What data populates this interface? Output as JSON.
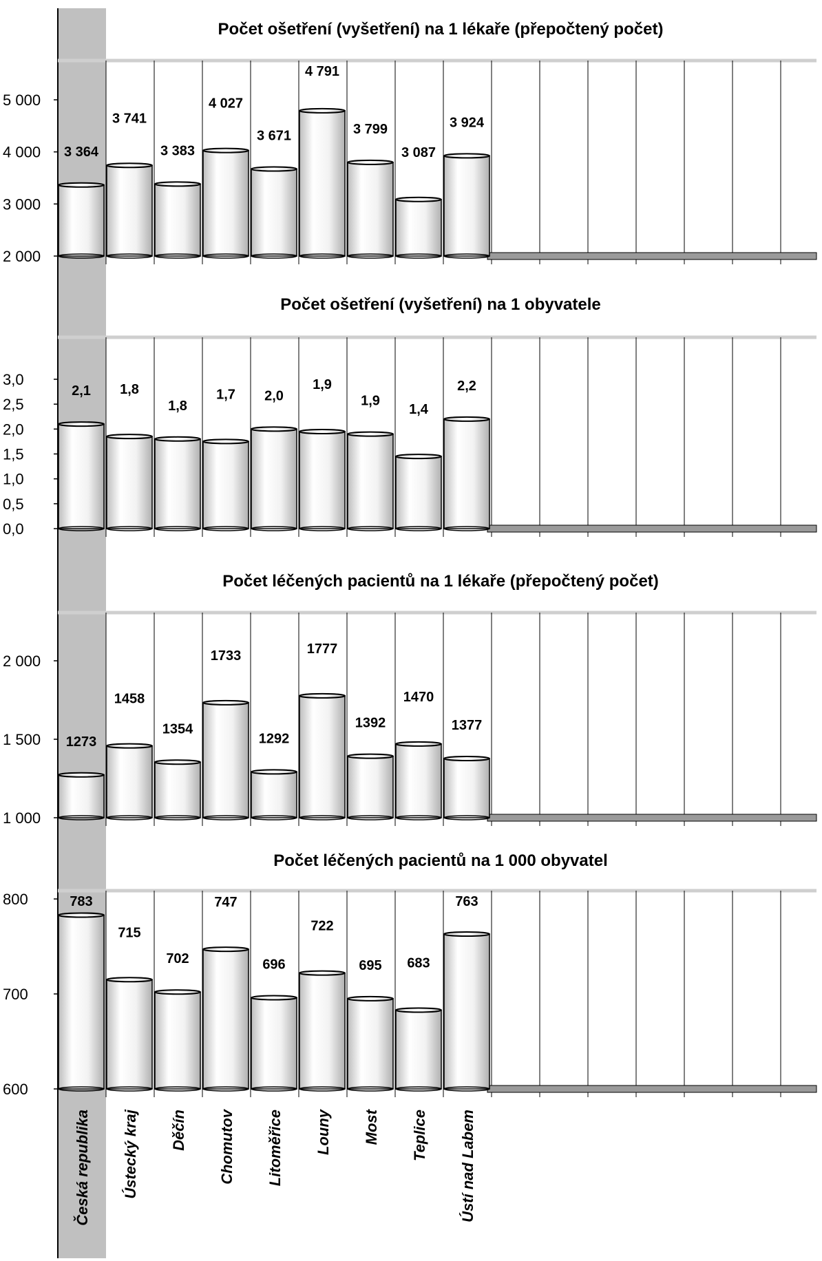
{
  "colors": {
    "highlight_band": "#c0c0c0",
    "bar_fill_light": "#ffffff",
    "bar_fill_dark": "#bdbdbd",
    "bar_stroke": "#000000",
    "floor": "#9a9a9a",
    "grid": "#000000"
  },
  "categories": [
    "Česká republika",
    "Ústecký kraj",
    "Děčín",
    "Chomutov",
    "Litoměřice",
    "Louny",
    "Most",
    "Teplice",
    "Ústí nad Labem"
  ],
  "chart_data": [
    {
      "type": "bar",
      "title": "Počet ošetření (vyšetření) na 1 lékaře (přepočtený počet)",
      "categories": [
        "Česká republika",
        "Ústecký kraj",
        "Děčín",
        "Chomutov",
        "Litoměřice",
        "Louny",
        "Most",
        "Teplice",
        "Ústí nad Labem"
      ],
      "values": [
        3364,
        3741,
        3383,
        4027,
        3671,
        4791,
        3799,
        3087,
        3924
      ],
      "value_labels": [
        "3 364",
        "3 741",
        "3 383",
        "4 027",
        "3 671",
        "4 791",
        "3 799",
        "3 087",
        "3 924"
      ],
      "ylim": [
        2000,
        5000
      ],
      "yticks": [
        2000,
        3000,
        4000,
        5000
      ],
      "ytick_labels": [
        "2 000",
        "3 000",
        "4 000",
        "5 000"
      ],
      "highlight": "Česká republika",
      "grid": true
    },
    {
      "type": "bar",
      "title": "Počet ošetření (vyšetření) na 1 obyvatele",
      "categories": [
        "Česká republika",
        "Ústecký kraj",
        "Děčín",
        "Chomutov",
        "Litoměřice",
        "Louny",
        "Most",
        "Teplice",
        "Ústí nad Labem"
      ],
      "values": [
        2.1,
        1.85,
        1.8,
        1.75,
        2.0,
        1.95,
        1.9,
        1.45,
        2.2
      ],
      "value_labels": [
        "2,1",
        "1,8",
        "1,8",
        "1,7",
        "2,0",
        "1,9",
        "1,9",
        "1,4",
        "2,2"
      ],
      "ylim": [
        0,
        3.0
      ],
      "yticks": [
        0,
        0.5,
        1.0,
        1.5,
        2.0,
        2.5,
        3.0
      ],
      "ytick_labels": [
        "0,0",
        "0,5",
        "1,0",
        "1,5",
        "2,0",
        "2,5",
        "3,0"
      ],
      "highlight": "Česká republika",
      "grid": true
    },
    {
      "type": "bar",
      "title": "Počet léčených pacientů na 1 lékaře (přepočtený počet)",
      "categories": [
        "Česká republika",
        "Ústecký kraj",
        "Děčín",
        "Chomutov",
        "Litoměřice",
        "Louny",
        "Most",
        "Teplice",
        "Ústí nad Labem"
      ],
      "values": [
        1273,
        1458,
        1354,
        1733,
        1292,
        1777,
        1392,
        1470,
        1377
      ],
      "value_labels": [
        "1273",
        "1458",
        "1354",
        "1733",
        "1292",
        "1777",
        "1392",
        "1470",
        "1377"
      ],
      "ylim": [
        1000,
        2000
      ],
      "yticks": [
        1000,
        1500,
        2000
      ],
      "ytick_labels": [
        "1 000",
        "1 500",
        "2 000"
      ],
      "highlight": "Česká republika",
      "grid": true
    },
    {
      "type": "bar",
      "title": "Počet léčených pacientů na 1 000 obyvatel",
      "categories": [
        "Česká republika",
        "Ústecký kraj",
        "Děčín",
        "Chomutov",
        "Litoměřice",
        "Louny",
        "Most",
        "Teplice",
        "Ústí nad Labem"
      ],
      "values": [
        783,
        715,
        702,
        747,
        696,
        722,
        695,
        683,
        763
      ],
      "value_labels": [
        "783",
        "715",
        "702",
        "747",
        "696",
        "722",
        "695",
        "683",
        "763"
      ],
      "ylim": [
        600,
        800
      ],
      "yticks": [
        600,
        700,
        800
      ],
      "ytick_labels": [
        "600",
        "700",
        "800"
      ],
      "highlight": "Česká republika",
      "grid": true
    }
  ]
}
